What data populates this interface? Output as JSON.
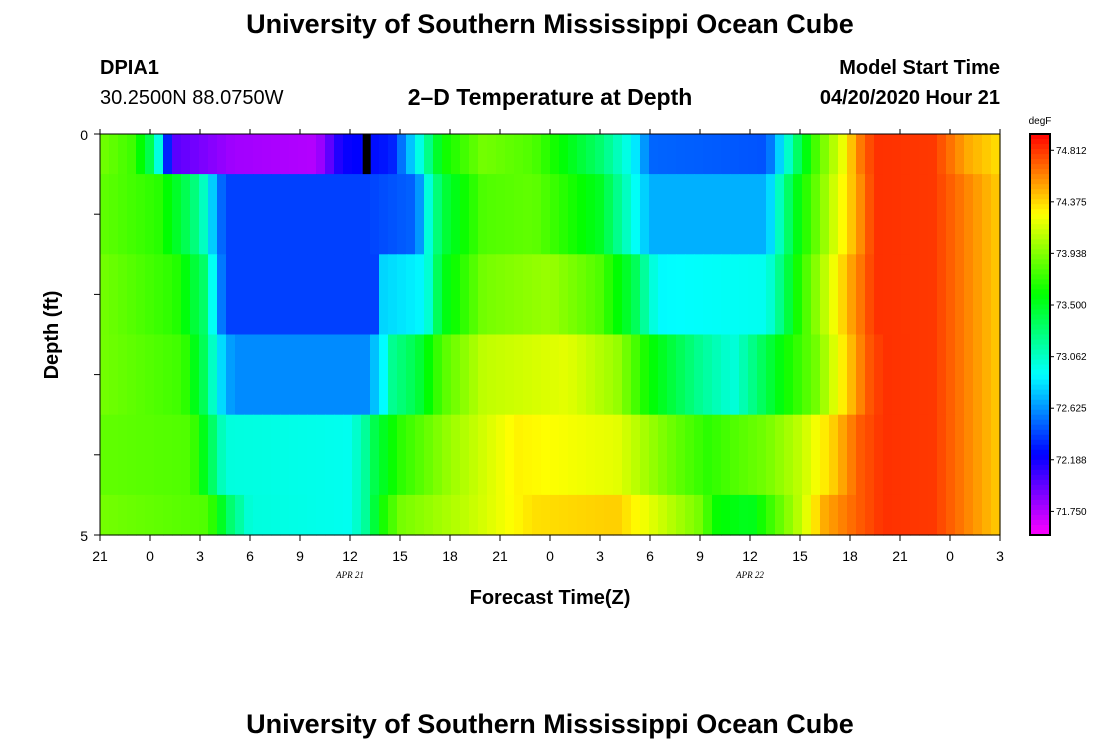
{
  "header": {
    "title": "University of Southern Mississippi Ocean Cube",
    "station": "DPIA1",
    "location": "30.2500N 88.0750W",
    "plot_title": "2–D Temperature at Depth",
    "model_label": "Model Start Time",
    "model_time": "04/20/2020 Hour 21"
  },
  "footer": {
    "title": "University of Southern Mississippi Ocean Cube"
  },
  "chart_data": {
    "type": "heatmap",
    "title": "2–D Temperature at Depth",
    "xlabel": "Forecast Time(Z)",
    "ylabel": "Depth (ft)",
    "x_tick_labels": [
      "21",
      "0",
      "3",
      "6",
      "9",
      "12",
      "15",
      "18",
      "21",
      "0",
      "3",
      "6",
      "9",
      "12",
      "15",
      "18",
      "21",
      "0",
      "3"
    ],
    "date_labels": [
      {
        "label": "APR 21",
        "at_hour": 15
      },
      {
        "label": "APR 22",
        "at_hour": 39
      }
    ],
    "x_range_hours": [
      0,
      54
    ],
    "y_tick_labels": {
      "top": "0",
      "bottom": "5"
    },
    "ylim": [
      0,
      5
    ],
    "depths": [
      0,
      1,
      2,
      3,
      4,
      5
    ],
    "colorbar": {
      "unit": "degF",
      "ticks": [
        "74.812",
        "74.375",
        "73.938",
        "73.500",
        "73.062",
        "72.625",
        "72.188",
        "71.750"
      ],
      "min": 71.55,
      "max": 74.95
    },
    "row_profiles": [
      [
        [
          0,
          73.9
        ],
        [
          2,
          73.75
        ],
        [
          3.2,
          73.3
        ],
        [
          3.6,
          72.9
        ],
        [
          4.3,
          72.0
        ],
        [
          8,
          71.8
        ],
        [
          13,
          71.75
        ],
        [
          14.5,
          72.2
        ],
        [
          17.5,
          72.3
        ],
        [
          19,
          72.9
        ],
        [
          20.5,
          73.6
        ],
        [
          23,
          73.9
        ],
        [
          26,
          73.8
        ],
        [
          30,
          73.3
        ],
        [
          32,
          72.9
        ],
        [
          33,
          72.5
        ],
        [
          40,
          72.45
        ],
        [
          41,
          72.9
        ],
        [
          42,
          73.4
        ],
        [
          43,
          73.8
        ],
        [
          44.5,
          74.2
        ],
        [
          45.5,
          74.6
        ],
        [
          46.5,
          74.82
        ],
        [
          50,
          74.8
        ],
        [
          52,
          74.5
        ],
        [
          54,
          74.35
        ]
      ],
      [
        [
          0,
          73.85
        ],
        [
          3.5,
          73.7
        ],
        [
          6,
          73.2
        ],
        [
          6.5,
          72.9
        ],
        [
          7.5,
          72.4
        ],
        [
          16,
          72.4
        ],
        [
          19,
          72.5
        ],
        [
          19.5,
          72.9
        ],
        [
          20.5,
          73.4
        ],
        [
          23,
          73.8
        ],
        [
          26,
          73.85
        ],
        [
          30,
          73.5
        ],
        [
          31.5,
          73.1
        ],
        [
          33,
          72.7
        ],
        [
          40,
          72.7
        ],
        [
          41,
          73.2
        ],
        [
          42,
          73.6
        ],
        [
          43.5,
          74.0
        ],
        [
          45,
          74.4
        ],
        [
          46.5,
          74.82
        ],
        [
          50,
          74.8
        ],
        [
          54,
          74.4
        ]
      ],
      [
        [
          0,
          73.9
        ],
        [
          4.5,
          73.7
        ],
        [
          6.3,
          73.3
        ],
        [
          6.8,
          72.9
        ],
        [
          7.5,
          72.4
        ],
        [
          16.5,
          72.4
        ],
        [
          17,
          72.8
        ],
        [
          19.5,
          72.9
        ],
        [
          20.5,
          73.5
        ],
        [
          23,
          73.9
        ],
        [
          27,
          74.0
        ],
        [
          30,
          73.8
        ],
        [
          32,
          73.4
        ],
        [
          33.5,
          72.9
        ],
        [
          40,
          72.95
        ],
        [
          41,
          73.3
        ],
        [
          42,
          73.7
        ],
        [
          43.5,
          74.1
        ],
        [
          45,
          74.5
        ],
        [
          46.5,
          74.82
        ],
        [
          50,
          74.8
        ],
        [
          54,
          74.4
        ]
      ],
      [
        [
          0,
          73.9
        ],
        [
          5,
          73.75
        ],
        [
          6.4,
          73.3
        ],
        [
          7,
          72.9
        ],
        [
          8,
          72.6
        ],
        [
          16,
          72.6
        ],
        [
          17,
          72.9
        ],
        [
          17.5,
          73.2
        ],
        [
          19,
          73.4
        ],
        [
          20.5,
          73.8
        ],
        [
          23,
          74.1
        ],
        [
          28,
          74.2
        ],
        [
          31,
          74.0
        ],
        [
          33,
          73.6
        ],
        [
          36,
          73.2
        ],
        [
          38,
          73.0
        ],
        [
          39.5,
          73.3
        ],
        [
          41,
          73.6
        ],
        [
          43,
          73.9
        ],
        [
          44.5,
          74.3
        ],
        [
          46,
          74.7
        ],
        [
          47,
          74.82
        ],
        [
          50,
          74.8
        ],
        [
          54,
          74.4
        ]
      ],
      [
        [
          0,
          73.85
        ],
        [
          5.5,
          73.8
        ],
        [
          6.8,
          73.3
        ],
        [
          7.5,
          73.0
        ],
        [
          15,
          72.95
        ],
        [
          16,
          73.2
        ],
        [
          16.5,
          73.4
        ],
        [
          18,
          73.7
        ],
        [
          21,
          74.0
        ],
        [
          25,
          74.3
        ],
        [
          31,
          74.2
        ],
        [
          34,
          73.9
        ],
        [
          36.5,
          73.7
        ],
        [
          38,
          73.8
        ],
        [
          40,
          73.9
        ],
        [
          42,
          74.1
        ],
        [
          44,
          74.4
        ],
        [
          45.5,
          74.7
        ],
        [
          47,
          74.82
        ],
        [
          50,
          74.8
        ],
        [
          54,
          74.4
        ]
      ],
      [
        [
          0,
          73.9
        ],
        [
          6.5,
          73.8
        ],
        [
          7.8,
          73.3
        ],
        [
          9,
          73.0
        ],
        [
          15,
          72.95
        ],
        [
          16,
          73.2
        ],
        [
          16.8,
          73.6
        ],
        [
          18,
          73.9
        ],
        [
          22,
          74.1
        ],
        [
          26,
          74.35
        ],
        [
          31,
          74.4
        ],
        [
          33,
          74.2
        ],
        [
          36,
          73.9
        ],
        [
          37,
          73.6
        ],
        [
          39,
          73.5
        ],
        [
          40.5,
          73.8
        ],
        [
          42,
          74.1
        ],
        [
          43.5,
          74.5
        ],
        [
          45.5,
          74.7
        ],
        [
          47,
          74.82
        ],
        [
          50,
          74.8
        ],
        [
          54,
          74.4
        ]
      ]
    ],
    "black_marker": {
      "hour": 16,
      "depth_from": 0,
      "depth_to": 0.5
    }
  }
}
